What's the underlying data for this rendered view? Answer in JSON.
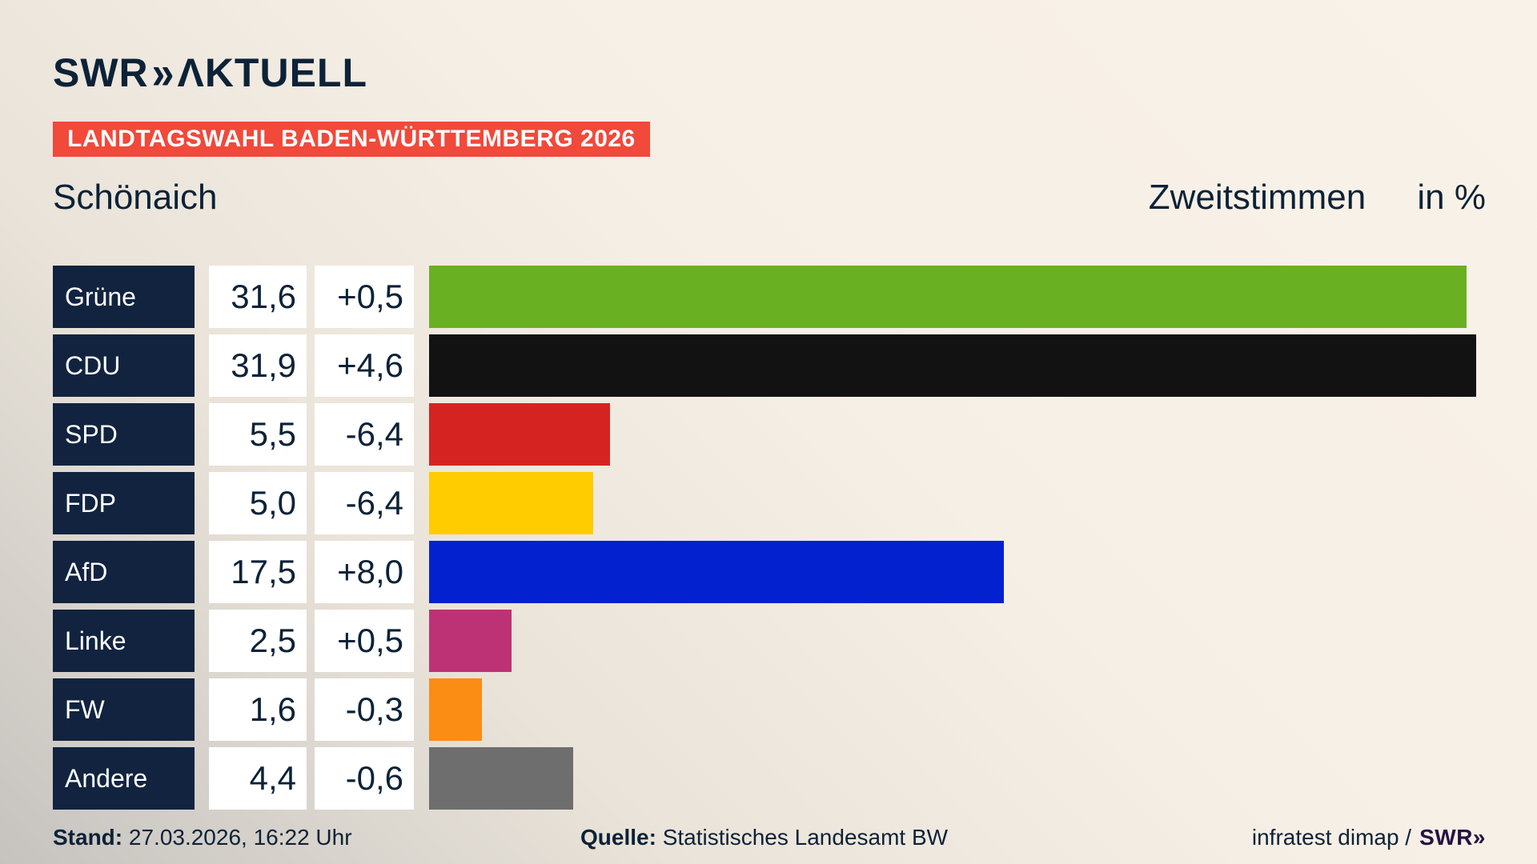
{
  "brand": {
    "swr": "SWR",
    "chevrons": "»",
    "aktuell": "ΛKTUELL"
  },
  "banner": {
    "text": "LANDTAGSWAHL BADEN-WÜRTTEMBERG 2026",
    "background": "#f1493a"
  },
  "header": {
    "region": "Schönaich",
    "metric": "Zweitstimmen",
    "unit": "in %"
  },
  "chart_data": {
    "type": "bar",
    "orientation": "horizontal",
    "title": "Schönaich",
    "subtitle": "Zweitstimmen in %",
    "categories": [
      "Grüne",
      "CDU",
      "SPD",
      "FDP",
      "AfD",
      "Linke",
      "FW",
      "Andere"
    ],
    "values": [
      31.6,
      31.9,
      5.5,
      5.0,
      17.5,
      2.5,
      1.6,
      4.4
    ],
    "changes": [
      0.5,
      4.6,
      -6.4,
      -6.4,
      8.0,
      0.5,
      -0.3,
      -0.6
    ],
    "value_labels": [
      "31,6",
      "31,9",
      "5,5",
      "5,0",
      "17,5",
      "2,5",
      "1,6",
      "4,4"
    ],
    "change_labels": [
      "+0,5",
      "+4,6",
      "-6,4",
      "-6,4",
      "+8,0",
      "+0,5",
      "-0,3",
      "-0,6"
    ],
    "bar_colors": [
      "#6ab023",
      "#121212",
      "#d52322",
      "#ffcc00",
      "#0321cf",
      "#bd3274",
      "#fb8c14",
      "#6e6e6e"
    ],
    "xlim": [
      0,
      31.9
    ],
    "unit": "%",
    "grid": false,
    "legend": false
  },
  "footer": {
    "stand_label": "Stand:",
    "stand_value": " 27.03.2026, 16:22 Uhr",
    "quelle_label": "Quelle:",
    "quelle_value": " Statistisches Landesamt BW",
    "credit_text": "infratest dimap /",
    "credit_brand": "SWR»"
  },
  "colors": {
    "navy_text": "#0c2238",
    "label_cell_bg": "#11233f",
    "value_cell_bg": "#ffffff",
    "banner_red": "#f1493a",
    "background_light": "#f9f2e8",
    "background_dark": "#c6c3bf"
  }
}
